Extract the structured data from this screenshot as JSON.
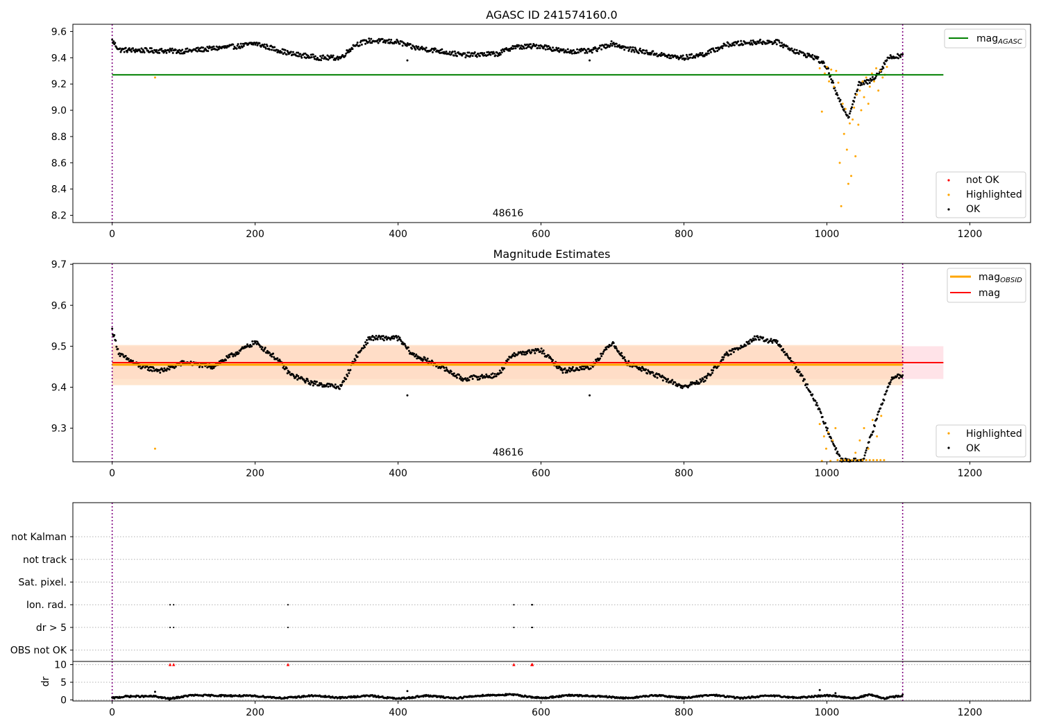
{
  "figure": {
    "background": "#ffffff",
    "colors": {
      "ok": "#000000",
      "highlighted": "#ffa500",
      "not_ok": "#ff0000",
      "agasc_line": "#008000",
      "mag_line": "#ff0000",
      "mag_band": "#ffc0cb",
      "obsid_line": "#ffa500",
      "obsid_band": "#ffdab9",
      "boundary": "#800080",
      "grid": "#b0b0b0"
    }
  },
  "chart_data": [
    {
      "type": "scatter",
      "title": "AGASC ID 241574160.0",
      "xlabel": "",
      "ylabel": "",
      "xlim": [
        -55,
        1285
      ],
      "ylim": [
        8.145,
        9.655
      ],
      "xticks": [
        0,
        200,
        400,
        600,
        800,
        1000,
        1200
      ],
      "yticks": [
        8.2,
        8.4,
        8.6,
        8.8,
        9.0,
        9.2,
        9.4,
        9.6
      ],
      "ytick_decimals": 1,
      "grid": false,
      "legend_lines": {
        "position": "top-right",
        "entries": [
          {
            "label": "mag",
            "subscript": "AGASC",
            "color": "#008000"
          }
        ]
      },
      "legend_points": {
        "position": "bottom-right",
        "entries": [
          {
            "label": "not OK",
            "color": "#ff0000"
          },
          {
            "label": "Highlighted",
            "color": "#ffa500"
          },
          {
            "label": "OK",
            "color": "#000000"
          }
        ]
      },
      "hlines": [
        {
          "name": "mag_AGASC",
          "y": 9.27,
          "x_start": 0,
          "x_end": 1163,
          "color": "#008000"
        }
      ],
      "vlines": [
        {
          "x": 0
        },
        {
          "x": 1106
        }
      ],
      "annotation": {
        "text": "48616",
        "x": 553,
        "y": 8.17
      },
      "series": [
        {
          "name": "OK",
          "color": "#000000",
          "x_range": [
            0,
            1106
          ],
          "count": 1106,
          "baseline": [
            [
              0,
              9.53
            ],
            [
              10,
              9.46
            ],
            [
              100,
              9.45
            ],
            [
              180,
              9.49
            ],
            [
              200,
              9.51
            ],
            [
              250,
              9.43
            ],
            [
              290,
              9.4
            ],
            [
              320,
              9.4
            ],
            [
              340,
              9.5
            ],
            [
              360,
              9.53
            ],
            [
              400,
              9.52
            ],
            [
              420,
              9.48
            ],
            [
              460,
              9.45
            ],
            [
              490,
              9.42
            ],
            [
              540,
              9.43
            ],
            [
              560,
              9.48
            ],
            [
              600,
              9.49
            ],
            [
              630,
              9.45
            ],
            [
              670,
              9.45
            ],
            [
              700,
              9.51
            ],
            [
              720,
              9.47
            ],
            [
              780,
              9.41
            ],
            [
              800,
              9.4
            ],
            [
              830,
              9.43
            ],
            [
              860,
              9.5
            ],
            [
              900,
              9.52
            ],
            [
              930,
              9.52
            ],
            [
              960,
              9.44
            ],
            [
              985,
              9.4
            ],
            [
              1000,
              9.33
            ],
            [
              1015,
              9.1
            ],
            [
              1030,
              8.95
            ],
            [
              1045,
              9.2
            ],
            [
              1060,
              9.22
            ],
            [
              1075,
              9.3
            ],
            [
              1085,
              9.4
            ],
            [
              1106,
              9.42
            ]
          ],
          "outliers": [
            [
              413,
              9.38
            ],
            [
              668,
              9.38
            ]
          ]
        },
        {
          "name": "Highlighted",
          "color": "#ffa500",
          "points": [
            [
              60,
              9.25
            ],
            [
              990,
              9.32
            ],
            [
              993,
              8.99
            ],
            [
              997,
              9.28
            ],
            [
              1000,
              9.33
            ],
            [
              1003,
              9.22
            ],
            [
              1006,
              9.31
            ],
            [
              1010,
              9.18
            ],
            [
              1013,
              9.3
            ],
            [
              1016,
              9.21
            ],
            [
              1018,
              8.6
            ],
            [
              1020,
              8.27
            ],
            [
              1022,
              9.05
            ],
            [
              1024,
              8.82
            ],
            [
              1026,
              9.01
            ],
            [
              1028,
              8.7
            ],
            [
              1030,
              8.44
            ],
            [
              1032,
              8.9
            ],
            [
              1034,
              8.5
            ],
            [
              1036,
              8.93
            ],
            [
              1038,
              9.02
            ],
            [
              1040,
              8.65
            ],
            [
              1042,
              9.12
            ],
            [
              1044,
              8.89
            ],
            [
              1046,
              9.15
            ],
            [
              1048,
              9.0
            ],
            [
              1050,
              9.22
            ],
            [
              1052,
              9.1
            ],
            [
              1055,
              9.25
            ],
            [
              1058,
              9.05
            ],
            [
              1060,
              9.18
            ],
            [
              1063,
              9.28
            ],
            [
              1066,
              9.22
            ],
            [
              1069,
              9.32
            ],
            [
              1072,
              9.15
            ],
            [
              1075,
              9.3
            ],
            [
              1078,
              9.25
            ],
            [
              1081,
              9.27
            ],
            [
              1084,
              9.33
            ]
          ]
        },
        {
          "name": "not OK",
          "color": "#ff0000",
          "points": []
        }
      ]
    },
    {
      "type": "scatter",
      "title": "Magnitude Estimates",
      "xlabel": "",
      "ylabel": "",
      "xlim": [
        -55,
        1285
      ],
      "ylim": [
        9.218,
        9.702
      ],
      "xticks": [
        0,
        200,
        400,
        600,
        800,
        1000,
        1200
      ],
      "yticks": [
        9.3,
        9.4,
        9.5,
        9.6,
        9.7
      ],
      "ytick_decimals": 1,
      "grid": false,
      "legend_lines": {
        "position": "top-right",
        "entries": [
          {
            "label": "mag",
            "subscript": "OBSID",
            "color": "#ffa500"
          },
          {
            "label": "mag",
            "subscript": "",
            "color": "#ff0000"
          }
        ]
      },
      "legend_points": {
        "position": "bottom-right",
        "entries": [
          {
            "label": "Highlighted",
            "color": "#ffa500"
          },
          {
            "label": "OK",
            "color": "#000000"
          }
        ]
      },
      "bands": [
        {
          "name": "mag",
          "y_low": 9.42,
          "y_high": 9.5,
          "x_start": 0,
          "x_end": 1163,
          "color": "#ffc0cb",
          "opacity": 0.45
        },
        {
          "name": "mag_OBSID",
          "y_low": 9.405,
          "y_high": 9.503,
          "x_start": 0,
          "x_end": 1106,
          "color": "#ffdab9",
          "opacity": 0.7
        }
      ],
      "hlines": [
        {
          "name": "mag_OBSID",
          "y": 9.455,
          "x_start": 0,
          "x_end": 1106,
          "color": "#ffa500"
        },
        {
          "name": "mag",
          "y": 9.46,
          "x_start": 0,
          "x_end": 1163,
          "color": "#ff0000"
        }
      ],
      "vlines": [
        {
          "x": 0
        },
        {
          "x": 1106
        }
      ],
      "annotation": {
        "text": "48616",
        "x": 553,
        "y": 9.228
      },
      "series": [
        {
          "name": "OK",
          "color": "#000000",
          "x_range": [
            0,
            1106
          ],
          "count": 1106,
          "baseline": [
            [
              0,
              9.54
            ],
            [
              10,
              9.48
            ],
            [
              40,
              9.45
            ],
            [
              70,
              9.44
            ],
            [
              100,
              9.46
            ],
            [
              140,
              9.45
            ],
            [
              170,
              9.48
            ],
            [
              200,
              9.51
            ],
            [
              230,
              9.47
            ],
            [
              250,
              9.43
            ],
            [
              280,
              9.41
            ],
            [
              320,
              9.4
            ],
            [
              340,
              9.47
            ],
            [
              360,
              9.52
            ],
            [
              400,
              9.52
            ],
            [
              420,
              9.48
            ],
            [
              460,
              9.45
            ],
            [
              490,
              9.42
            ],
            [
              540,
              9.43
            ],
            [
              560,
              9.48
            ],
            [
              600,
              9.49
            ],
            [
              630,
              9.44
            ],
            [
              670,
              9.45
            ],
            [
              700,
              9.51
            ],
            [
              720,
              9.46
            ],
            [
              760,
              9.43
            ],
            [
              800,
              9.4
            ],
            [
              830,
              9.42
            ],
            [
              860,
              9.48
            ],
            [
              900,
              9.52
            ],
            [
              930,
              9.51
            ],
            [
              960,
              9.44
            ],
            [
              980,
              9.38
            ],
            [
              1000,
              9.3
            ],
            [
              1020,
              9.22
            ],
            [
              1050,
              9.22
            ],
            [
              1075,
              9.35
            ],
            [
              1090,
              9.42
            ],
            [
              1106,
              9.43
            ]
          ],
          "outliers": [
            [
              413,
              9.38
            ],
            [
              668,
              9.38
            ]
          ]
        },
        {
          "name": "Highlighted",
          "color": "#ffa500",
          "points": [
            [
              60,
              9.25
            ],
            [
              990,
              9.31
            ],
            [
              993,
              9.22
            ],
            [
              996,
              9.28
            ],
            [
              999,
              9.25
            ],
            [
              1002,
              9.29
            ],
            [
              1005,
              9.22
            ],
            [
              1008,
              9.27
            ],
            [
              1012,
              9.3
            ],
            [
              1015,
              9.222
            ],
            [
              1020,
              9.222
            ],
            [
              1025,
              9.222
            ],
            [
              1030,
              9.222
            ],
            [
              1035,
              9.222
            ],
            [
              1040,
              9.222
            ],
            [
              1045,
              9.222
            ],
            [
              1050,
              9.222
            ],
            [
              1055,
              9.222
            ],
            [
              1060,
              9.222
            ],
            [
              1065,
              9.222
            ],
            [
              1070,
              9.222
            ],
            [
              1075,
              9.222
            ],
            [
              1080,
              9.222
            ],
            [
              1040,
              9.24
            ],
            [
              1046,
              9.27
            ],
            [
              1052,
              9.3
            ],
            [
              1058,
              9.25
            ],
            [
              1064,
              9.32
            ],
            [
              1070,
              9.28
            ],
            [
              1076,
              9.33
            ]
          ]
        }
      ]
    },
    {
      "type": "scatter",
      "title": "",
      "xlabel": "",
      "ylabel": "",
      "xlim": [
        -55,
        1285
      ],
      "ylim": [
        -0.5,
        6.5
      ],
      "xticks": [],
      "yticks": [
        0,
        1,
        2,
        3,
        4,
        5
      ],
      "ytick_labels": [
        "OBS not OK",
        "dr > 5",
        "Ion. rad.",
        "Sat. pixel.",
        "not track",
        "not Kalman"
      ],
      "grid": true,
      "vlines": [
        {
          "x": 0
        },
        {
          "x": 1106
        }
      ],
      "series": [
        {
          "name": "Ion. rad.",
          "color": "#000000",
          "y": 2,
          "x": [
            81,
            86,
            246,
            562,
            587,
            588
          ]
        },
        {
          "name": "dr > 5",
          "color": "#000000",
          "y": 1,
          "x": [
            81,
            86,
            246,
            562,
            587,
            588
          ]
        }
      ]
    },
    {
      "type": "scatter",
      "title": "",
      "xlabel": "",
      "ylabel": "dr",
      "xlim": [
        -55,
        1285
      ],
      "ylim": [
        -0.3,
        10.9
      ],
      "xticks": [
        0,
        200,
        400,
        600,
        800,
        1000,
        1200
      ],
      "yticks": [
        0,
        5,
        10
      ],
      "ytick_decimals": 0,
      "grid": true,
      "vlines": [
        {
          "x": 0
        },
        {
          "x": 1106
        }
      ],
      "series": [
        {
          "name": "dr",
          "color": "#000000",
          "x_range": [
            0,
            1106
          ],
          "count": 1106,
          "baseline": [
            [
              0,
              0.5
            ],
            [
              20,
              1.0
            ],
            [
              60,
              1.0
            ],
            [
              80,
              0.3
            ],
            [
              110,
              1.3
            ],
            [
              160,
              1.2
            ],
            [
              200,
              1.1
            ],
            [
              240,
              0.5
            ],
            [
              280,
              1.2
            ],
            [
              320,
              0.6
            ],
            [
              360,
              1.2
            ],
            [
              400,
              0.3
            ],
            [
              440,
              1.2
            ],
            [
              480,
              0.5
            ],
            [
              520,
              1.3
            ],
            [
              560,
              1.5
            ],
            [
              600,
              0.5
            ],
            [
              640,
              1.3
            ],
            [
              680,
              1.0
            ],
            [
              720,
              0.5
            ],
            [
              760,
              1.3
            ],
            [
              800,
              0.6
            ],
            [
              840,
              1.4
            ],
            [
              880,
              0.5
            ],
            [
              920,
              1.2
            ],
            [
              960,
              0.6
            ],
            [
              1000,
              1.3
            ],
            [
              1040,
              0.5
            ],
            [
              1060,
              1.5
            ],
            [
              1080,
              0.4
            ],
            [
              1106,
              1.3
            ]
          ],
          "outliers": [
            [
              60,
              2.3
            ],
            [
              413,
              2.5
            ],
            [
              990,
              2.8
            ],
            [
              1012,
              1.9
            ]
          ]
        },
        {
          "name": "dr > 5",
          "color": "#ff0000",
          "points": [
            [
              81,
              10
            ],
            [
              86,
              10
            ],
            [
              246,
              10
            ],
            [
              562,
              10
            ],
            [
              587,
              10
            ],
            [
              588,
              10
            ]
          ]
        }
      ]
    }
  ]
}
